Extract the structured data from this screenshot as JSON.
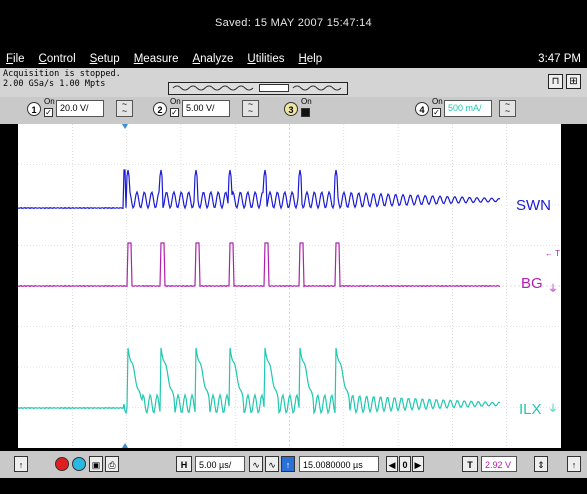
{
  "header": {
    "saved_text": "Saved:  15 MAY 2007  15:47:14"
  },
  "menu": {
    "items": [
      "File",
      "Control",
      "Setup",
      "Measure",
      "Analyze",
      "Utilities",
      "Help"
    ],
    "clock": "3:47 PM"
  },
  "status": {
    "line1": "Acquisition is stopped.",
    "line2": "2.00 GSa/s   1.00 Mpts"
  },
  "channels": [
    {
      "num": "1",
      "on_label": "On",
      "scale": "20.0 V/",
      "color": "#1a1ad6"
    },
    {
      "num": "2",
      "on_label": "On",
      "scale": "5.00 V/",
      "color": "#b020b0"
    },
    {
      "num": "3",
      "on_label": "On",
      "scale": "",
      "color": "#e0c020"
    },
    {
      "num": "4",
      "on_label": "On",
      "scale": "500 mA/",
      "color": "#20c8b0"
    }
  ],
  "traces": [
    {
      "label": "SWN",
      "color": "#1a1ad6"
    },
    {
      "label": "BG",
      "color": "#b020b0"
    },
    {
      "label": "ILX",
      "color": "#20c8b0"
    }
  ],
  "trigger_marker": "← T",
  "bottom": {
    "h_label": "H",
    "timebase": "5.00 µs/",
    "delay": "15.0080000 µs",
    "t_label": "T",
    "trigger_level": "2.92 V",
    "trigger_level_color": "#b020b0",
    "nav_start": "◀",
    "nav_zero": "0",
    "nav_end": "▶"
  },
  "icons": {
    "stop": "stop-icon",
    "run": "run-icon",
    "single": "single-icon",
    "print": "print-icon"
  }
}
